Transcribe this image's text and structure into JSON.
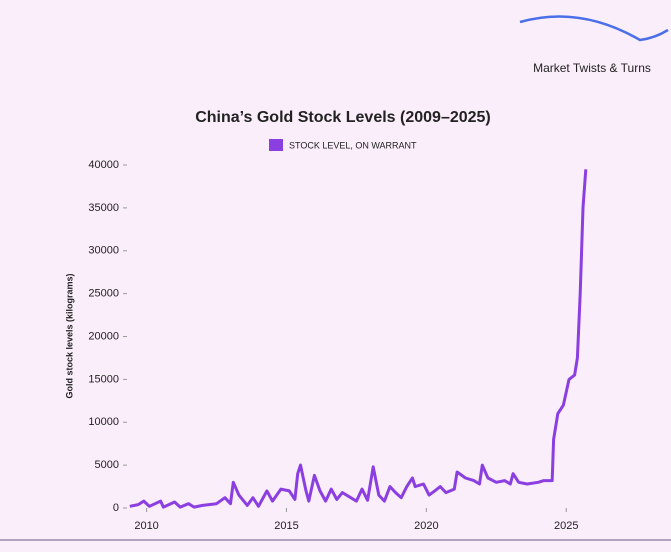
{
  "brand": "Market Twists & Turns",
  "chart_data": {
    "type": "line",
    "title": "China’s Gold Stock Levels (2009–2025)",
    "ylabel": "Gold stock levels (kilograms)",
    "legend": "top",
    "series": [
      {
        "name": "STOCK LEVEL, ON WARRANT",
        "color": "#8b3fe0",
        "x": [
          2009.4,
          2009.7,
          2009.9,
          2010.1,
          2010.5,
          2010.6,
          2011.0,
          2011.2,
          2011.5,
          2011.7,
          2012.0,
          2012.5,
          2012.8,
          2013.0,
          2013.1,
          2013.3,
          2013.6,
          2013.8,
          2014.0,
          2014.3,
          2014.5,
          2014.8,
          2015.1,
          2015.3,
          2015.4,
          2015.5,
          2015.7,
          2015.8,
          2016.0,
          2016.2,
          2016.4,
          2016.6,
          2016.8,
          2017.0,
          2017.3,
          2017.5,
          2017.7,
          2017.9,
          2018.1,
          2018.3,
          2018.5,
          2018.7,
          2018.9,
          2019.1,
          2019.3,
          2019.5,
          2019.6,
          2019.9,
          2020.1,
          2020.3,
          2020.5,
          2020.7,
          2021.0,
          2021.1,
          2021.4,
          2021.7,
          2021.9,
          2022.0,
          2022.2,
          2022.5,
          2022.8,
          2023.0,
          2023.1,
          2023.3,
          2023.6,
          2024.0,
          2024.2,
          2024.5,
          2024.55,
          2024.7,
          2024.9,
          2025.1,
          2025.3,
          2025.4,
          2025.5,
          2025.6,
          2025.7
        ],
        "values": [
          200,
          400,
          800,
          200,
          800,
          100,
          700,
          100,
          500,
          100,
          300,
          500,
          1200,
          500,
          3000,
          1500,
          300,
          1200,
          200,
          2000,
          800,
          2200,
          2000,
          1000,
          4000,
          5000,
          2000,
          800,
          3800,
          2000,
          800,
          2200,
          1000,
          1800,
          1200,
          800,
          2200,
          900,
          4800,
          1500,
          800,
          2500,
          1800,
          1200,
          2500,
          3500,
          2500,
          2800,
          1500,
          2000,
          2500,
          1800,
          2200,
          4200,
          3500,
          3200,
          2800,
          5000,
          3500,
          3000,
          3200,
          2800,
          4000,
          3000,
          2800,
          3000,
          3200,
          3200,
          8000,
          11000,
          12000,
          15000,
          15500,
          17500,
          25000,
          35000,
          39500
        ]
      }
    ],
    "xlim": [
      2009.3,
      2025.85
    ],
    "xticks": [
      2010,
      2015,
      2020,
      2025
    ],
    "ylim": [
      0,
      40000
    ],
    "yticks": [
      0,
      5000,
      10000,
      15000,
      20000,
      25000,
      30000,
      35000,
      40000
    ]
  }
}
